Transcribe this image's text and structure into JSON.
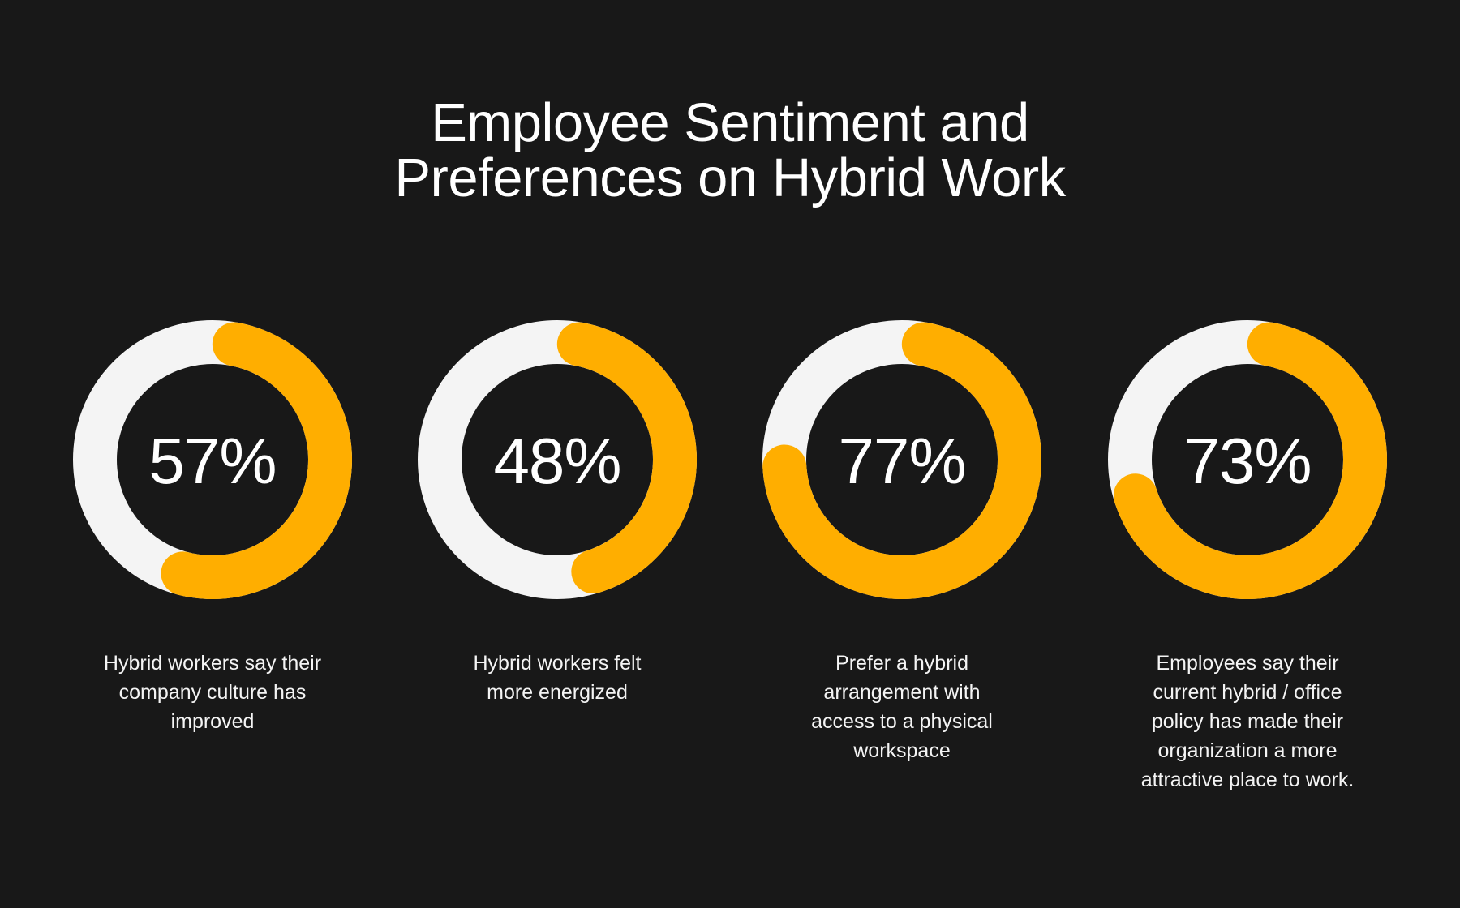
{
  "title": {
    "line1": "Employee Sentiment and",
    "line2": "Preferences on Hybrid Work"
  },
  "colors": {
    "background": "#181818",
    "accent": "#FFAE00",
    "track": "#F4F4F4",
    "text": "#FFFFFF"
  },
  "stats": [
    {
      "value": 57,
      "label": "57%",
      "caption": "Hybrid workers say their company culture has improved"
    },
    {
      "value": 48,
      "label": "48%",
      "caption": "Hybrid workers felt more energized"
    },
    {
      "value": 77,
      "label": "77%",
      "caption": "Prefer a hybrid arrangement with access to a physical workspace"
    },
    {
      "value": 73,
      "label": "73%",
      "caption": "Employees say their current hybrid / office policy has made their organization a more attractive place to work."
    }
  ],
  "chart_data": {
    "type": "pie",
    "subtype": "donut-progress",
    "title": "Employee Sentiment and Preferences on Hybrid Work",
    "categories": [
      "Hybrid workers say their company culture has improved",
      "Hybrid workers felt more energized",
      "Prefer a hybrid arrangement with access to a physical workspace",
      "Employees say their current hybrid / office policy has made their organization a more attractive place to work."
    ],
    "values": [
      57,
      48,
      77,
      73
    ],
    "unit": "%",
    "max": 100,
    "legend": "none",
    "grid": false
  }
}
